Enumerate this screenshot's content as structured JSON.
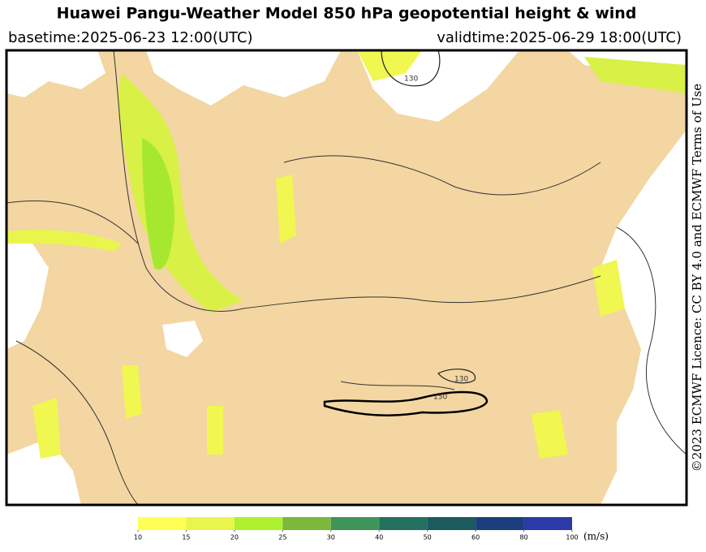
{
  "header": {
    "title": "Huawei Pangu-Weather Model 850 hPa geopotential height & wind",
    "basetime": "basetime:2025-06-23 12:00(UTC)",
    "validtime": "validtime:2025-06-29 18:00(UTC)"
  },
  "map": {
    "contour_labels": [
      "130",
      "130",
      "150"
    ]
  },
  "licence": "©2023 ECMWF Licence: CC BY 4.0 and ECMWF Terms of Use",
  "colorbar": {
    "ticks": [
      10,
      15,
      20,
      25,
      30,
      40,
      50,
      60,
      80,
      100
    ],
    "colors": [
      "#ffff55",
      "#e9f54c",
      "#aef02e",
      "#7bb83c",
      "#3f945a",
      "#24705e",
      "#1b5a5e",
      "#1d3e7c",
      "#2b3aa8"
    ],
    "unit": "(m/s)"
  }
}
